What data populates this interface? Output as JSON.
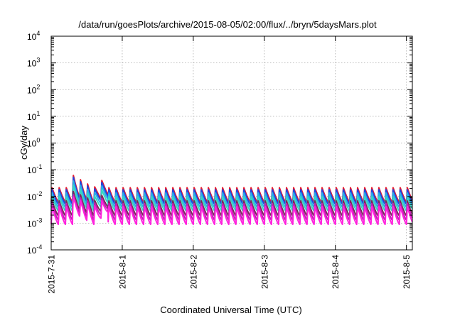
{
  "chart_data": {
    "type": "line",
    "title": "/data/run/goesPlots/archive/2015-08-05/02:00/flux/../bryn/5daysMars.plot",
    "xlabel": "Coordinated Universal Time (UTC)",
    "ylabel": "cGy/day",
    "y_scale": "log",
    "ylim": [
      0.0001,
      10000
    ],
    "xlim": [
      "2015-07-31 00:00",
      "2015-08-05 02:00"
    ],
    "grid": true,
    "x_ticks": [
      "2015-7-31",
      "2015-8-1",
      "2015-8-2",
      "2015-8-3",
      "2015-8-4",
      "2015-8-5"
    ],
    "y_ticks": [
      {
        "base": "10",
        "exp": "4"
      },
      {
        "base": "10",
        "exp": "3"
      },
      {
        "base": "10",
        "exp": "2"
      },
      {
        "base": "10",
        "exp": "1"
      },
      {
        "base": "10",
        "exp": "0"
      },
      {
        "base": "10",
        "exp": "-1"
      },
      {
        "base": "10",
        "exp": "-2"
      },
      {
        "base": "10",
        "exp": "-3"
      },
      {
        "base": "10",
        "exp": "-4"
      }
    ],
    "cycle_period_hours": 2.4,
    "series": [
      {
        "color": "#e8192c",
        "peak": 0.065,
        "trough": 0.0125,
        "dip_min": 0.0062
      },
      {
        "color": "#2244dd",
        "peak": 0.055,
        "trough": 0.0105,
        "dip_min": 0.0052
      },
      {
        "color": "#2ab0e8",
        "peak": 0.04,
        "trough": 0.008,
        "dip_min": 0.0039
      },
      {
        "color": "#39d6c2",
        "peak": 0.028,
        "trough": 0.0058,
        "dip_min": 0.0029
      },
      {
        "color": "#7a2a5a",
        "peak": 0.016,
        "trough": 0.0042,
        "dip_min": 0.0019
      },
      {
        "color": "#c21fb5",
        "peak": 0.012,
        "trough": 0.0034,
        "dip_min": 0.0013
      },
      {
        "color": "#ff22dd",
        "peak": 0.01,
        "trough": 0.0026,
        "dip_min": 0.0009
      }
    ],
    "dip_event": {
      "start": "2015-07-31 07:12",
      "min": "2015-07-31 14:24",
      "end": "2015-07-31 19:12"
    }
  }
}
